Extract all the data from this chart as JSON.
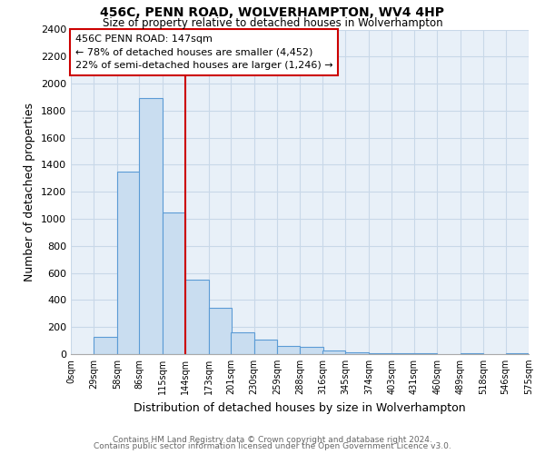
{
  "title": "456C, PENN ROAD, WOLVERHAMPTON, WV4 4HP",
  "subtitle": "Size of property relative to detached houses in Wolverhampton",
  "xlabel": "Distribution of detached houses by size in Wolverhampton",
  "ylabel": "Number of detached properties",
  "bar_left_edges": [
    0,
    29,
    58,
    86,
    115,
    144,
    173,
    201,
    230,
    259,
    288,
    316,
    345,
    374,
    403,
    431,
    460,
    489,
    518,
    546
  ],
  "bar_heights": [
    0,
    125,
    1350,
    1890,
    1050,
    550,
    340,
    160,
    105,
    60,
    55,
    30,
    15,
    10,
    10,
    5,
    0,
    5,
    0,
    5
  ],
  "bin_width": 29,
  "bar_color": "#c9ddf0",
  "bar_edge_color": "#5b9bd5",
  "property_line_x": 144,
  "property_line_color": "#cc0000",
  "annotation_title": "456C PENN ROAD: 147sqm",
  "annotation_line1": "← 78% of detached houses are smaller (4,452)",
  "annotation_line2": "22% of semi-detached houses are larger (1,246) →",
  "annotation_box_color": "#ffffff",
  "annotation_box_edge": "#cc0000",
  "xlim": [
    0,
    575
  ],
  "ylim": [
    0,
    2400
  ],
  "yticks": [
    0,
    200,
    400,
    600,
    800,
    1000,
    1200,
    1400,
    1600,
    1800,
    2000,
    2200,
    2400
  ],
  "xtick_labels": [
    "0sqm",
    "29sqm",
    "58sqm",
    "86sqm",
    "115sqm",
    "144sqm",
    "173sqm",
    "201sqm",
    "230sqm",
    "259sqm",
    "288sqm",
    "316sqm",
    "345sqm",
    "374sqm",
    "403sqm",
    "431sqm",
    "460sqm",
    "489sqm",
    "518sqm",
    "546sqm",
    "575sqm"
  ],
  "xtick_positions": [
    0,
    29,
    58,
    86,
    115,
    144,
    173,
    201,
    230,
    259,
    288,
    316,
    345,
    374,
    403,
    431,
    460,
    489,
    518,
    546,
    575
  ],
  "grid_color": "#c8d8e8",
  "bg_color": "#e8f0f8",
  "footer1": "Contains HM Land Registry data © Crown copyright and database right 2024.",
  "footer2": "Contains public sector information licensed under the Open Government Licence v3.0."
}
